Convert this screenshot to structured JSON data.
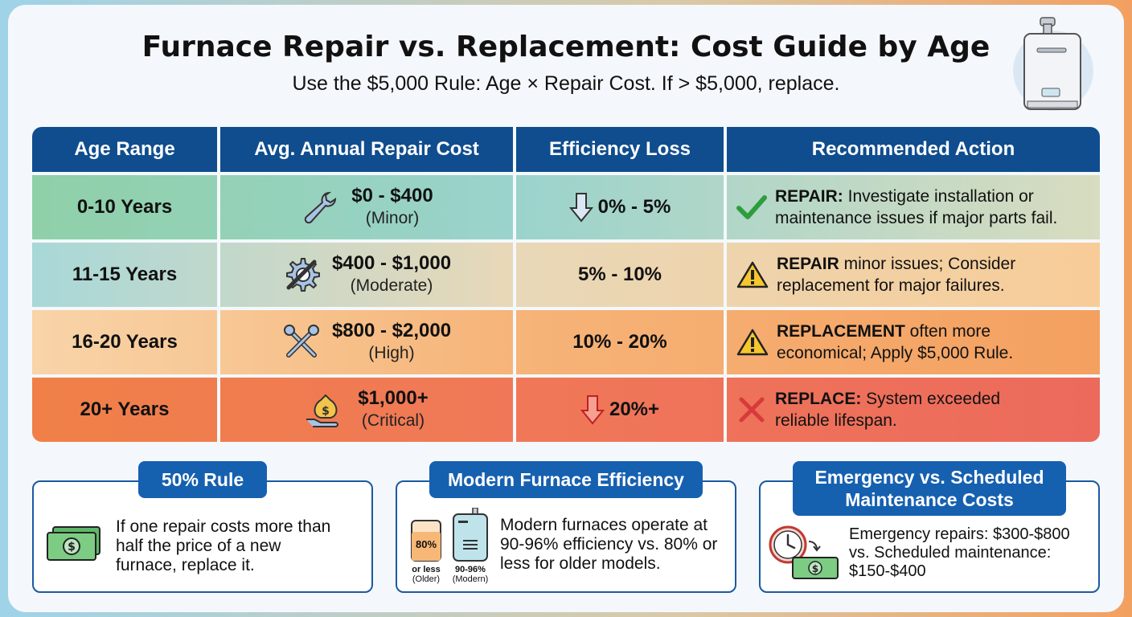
{
  "header": {
    "title": "Furnace Repair vs. Replacement: Cost Guide by Age",
    "subtitle": "Use the $5,000 Rule: Age × Repair Cost. If > $5,000, replace."
  },
  "table": {
    "columns": [
      "Age Range",
      "Avg. Annual Repair Cost",
      "Efficiency Loss",
      "Recommended Action"
    ],
    "rows": [
      {
        "age": "0-10 Years",
        "cost": "$0 - $400",
        "severity": "(Minor)",
        "cost_icon": "wrench-icon",
        "efficiency": "0% - 5%",
        "eff_icon": "arrow-down-icon",
        "action_bold": "REPAIR:",
        "action_line1": " Investigate installation or",
        "action_line2": "maintenance issues if major parts fail.",
        "action_icon": "check-icon",
        "bg": "linear-gradient(90deg,#8fd0a8,#9ad3cc 45%,#d8dcc0)"
      },
      {
        "age": "11-15 Years",
        "cost": "$400 - $1,000",
        "severity": "(Moderate)",
        "cost_icon": "gear-wrench-icon",
        "efficiency": "5% - 10%",
        "action_bold": "REPAIR",
        "action_line1": " minor issues; Consider",
        "action_line2": "replacement for major failures.",
        "action_icon": "warning-icon",
        "bg": "linear-gradient(90deg,#a8d8d8,#e8d8b8 45%,#f8cc98)"
      },
      {
        "age": "16-20 Years",
        "cost": "$800 - $2,000",
        "severity": "(High)",
        "cost_icon": "crossed-tools-icon",
        "efficiency": "10% - 20%",
        "action_bold": "REPLACEMENT",
        "action_line1": " often more",
        "action_line2": "economical; Apply $5,000 Rule.",
        "action_icon": "warning-icon",
        "bg": "linear-gradient(90deg,#f8d4a8,#f6b478 45%,#f4a060)"
      },
      {
        "age": "20+ Years",
        "cost": "$1,000+",
        "severity": "(Critical)",
        "cost_icon": "money-bag-icon",
        "efficiency": "20%+",
        "eff_icon": "arrow-down-icon",
        "action_bold": "REPLACE:",
        "action_line1": " System exceeded",
        "action_line2": "reliable lifespan.",
        "action_icon": "x-icon",
        "bg": "linear-gradient(90deg,#f08048,#f07858 45%,#ec6a5c)"
      }
    ]
  },
  "boxes": {
    "fifty": {
      "title": "50% Rule",
      "lines": [
        "If one repair costs more than",
        "half the price of a new",
        "furnace, replace it."
      ]
    },
    "modern": {
      "title": "Modern Furnace Efficiency",
      "lines": [
        "Modern furnaces operate at",
        "90-96% efficiency vs. 80% or",
        "less for older models."
      ],
      "older_pct": "80%",
      "older_label1": "or less",
      "older_label2": "(Older)",
      "modern_label1": "90-96%",
      "modern_label2": "(Modern)"
    },
    "emergency": {
      "title1": "Emergency vs. Scheduled",
      "title2": "Maintenance Costs",
      "lines": [
        "Emergency repairs: $300-$800",
        "vs. Scheduled maintenance:",
        "$150-$400"
      ]
    }
  },
  "colors": {
    "header_blue": "#0f4d8e",
    "tag_blue": "#1660b0",
    "accent_green": "#2e9d3e",
    "accent_red": "#d83a3a",
    "warning_yellow": "#f6c62e"
  }
}
